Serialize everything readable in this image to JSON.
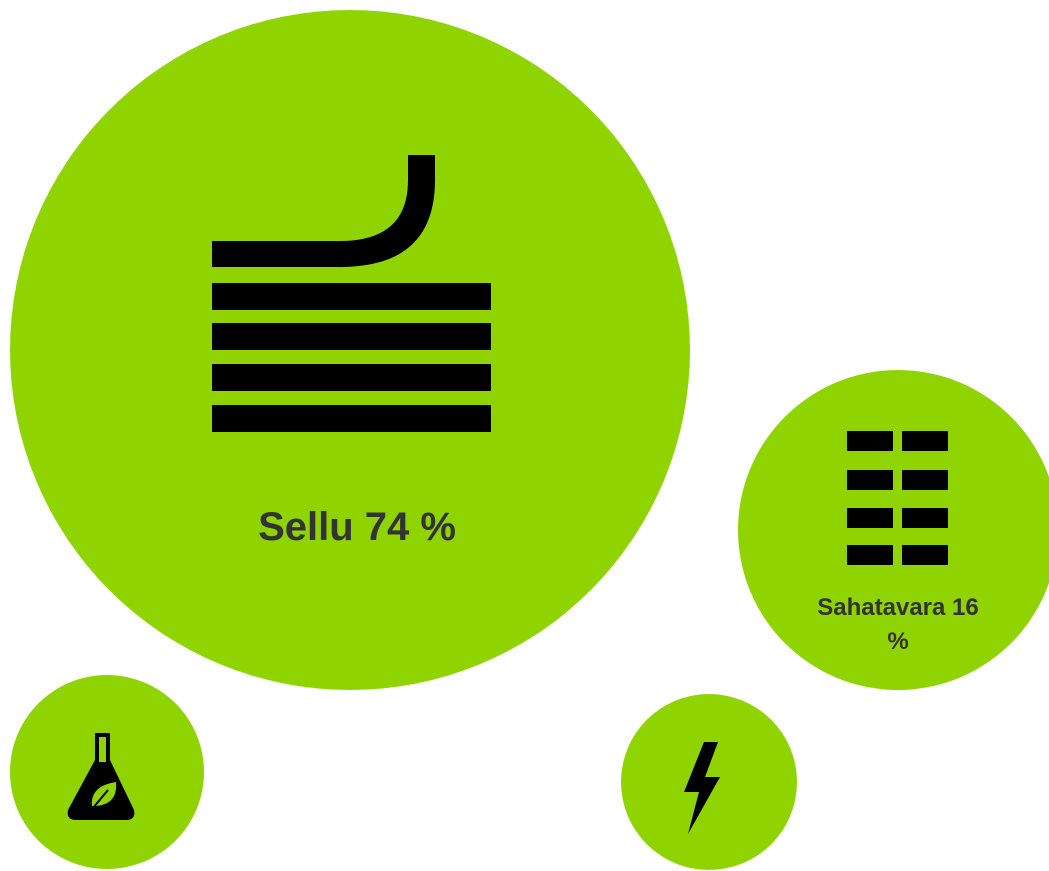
{
  "bubbles": [
    {
      "label": "Sellu 74 %"
    },
    {
      "label": "Sahatavara 16 %"
    }
  ]
}
